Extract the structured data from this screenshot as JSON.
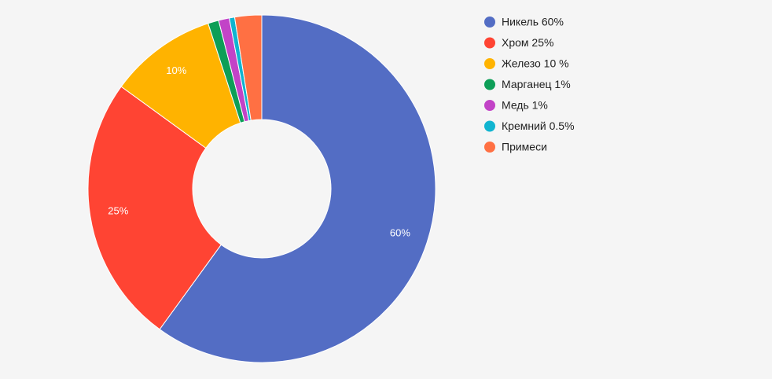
{
  "chart_data": {
    "type": "donut",
    "categories": [
      "Никель 60%",
      "Хром 25%",
      "Железо 10 %",
      "Марганец 1%",
      "Медь 1%",
      "Кремний 0.5%",
      "Примеси"
    ],
    "values": [
      60,
      25,
      10,
      1,
      1,
      0.5,
      2.5
    ],
    "value_labels": [
      "60%",
      "25%",
      "10%",
      null,
      null,
      null,
      null
    ],
    "colors": [
      "#536dc4",
      "#ff4433",
      "#ffb300",
      "#0d9e57",
      "#c243c7",
      "#10b4d0",
      "#ff7043"
    ],
    "legend": "right"
  }
}
